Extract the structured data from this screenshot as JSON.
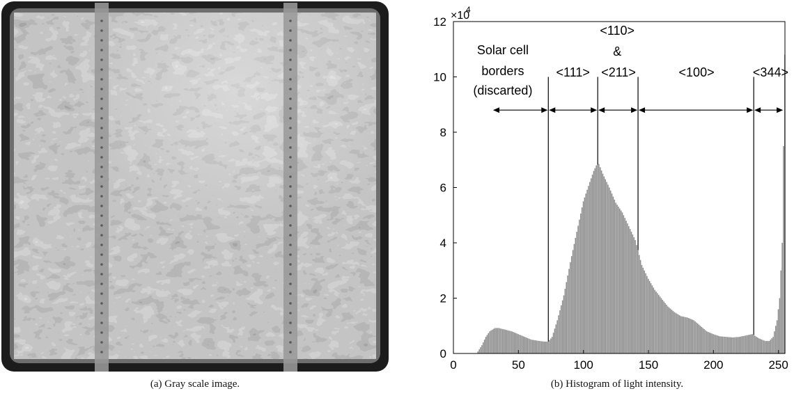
{
  "captions": {
    "a": "(a) Gray scale image.",
    "b": "(b) Histogram of light intensity."
  },
  "chart_data": {
    "type": "bar",
    "xlim": [
      0,
      255
    ],
    "ylim": [
      0,
      120000
    ],
    "xticks": [
      0,
      50,
      100,
      150,
      200,
      250
    ],
    "yticks": [
      0,
      2,
      4,
      6,
      8,
      10,
      12
    ],
    "y_exponent_label": "×10",
    "y_exponent_power": "4",
    "grid": false,
    "envelope_x": [
      0,
      18,
      20,
      22,
      25,
      28,
      32,
      35,
      40,
      45,
      50,
      55,
      60,
      65,
      70,
      73,
      76,
      80,
      85,
      90,
      95,
      100,
      105,
      108,
      110,
      112,
      115,
      120,
      125,
      130,
      135,
      140,
      145,
      150,
      155,
      160,
      165,
      170,
      175,
      180,
      185,
      190,
      195,
      200,
      205,
      210,
      215,
      220,
      225,
      230,
      235,
      240,
      243,
      246,
      249,
      251,
      253,
      254,
      255
    ],
    "envelope_y": [
      0,
      0,
      1500,
      3000,
      6000,
      8000,
      9200,
      9200,
      8600,
      8000,
      7000,
      6000,
      5000,
      4600,
      4300,
      4300,
      6000,
      12000,
      21000,
      33000,
      44000,
      55000,
      62000,
      66000,
      68000,
      68500,
      65000,
      60000,
      54500,
      51000,
      46000,
      41000,
      32000,
      27000,
      23000,
      20000,
      17000,
      15000,
      13500,
      13000,
      12000,
      10000,
      8000,
      7000,
      6200,
      6000,
      5800,
      6000,
      6500,
      7000,
      5500,
      4500,
      4500,
      6000,
      12000,
      20000,
      40000,
      75000,
      108000
    ],
    "region_labels": [
      {
        "text": "<111>",
        "x": 92
      },
      {
        "text": "<211>",
        "x": 127
      },
      {
        "text": "<100>",
        "x": 187
      },
      {
        "text": "<344>",
        "x": 244
      }
    ],
    "stacked_label": {
      "line1": "<110>",
      "line2": "&",
      "x": 126
    },
    "border_label": {
      "line1": "Solar cell",
      "line2": "borders",
      "line3": "(discarted)",
      "x": 38
    },
    "vertical_lines": [
      {
        "x": 73,
        "y_top": 100000
      },
      {
        "x": 111,
        "y_top": 100000
      },
      {
        "x": 142,
        "y_top": 100000
      },
      {
        "x": 231,
        "y_top": 100000
      }
    ],
    "arrows": [
      {
        "from": 30,
        "to": 73
      },
      {
        "from": 73,
        "to": 111
      },
      {
        "from": 111,
        "to": 142
      },
      {
        "from": 142,
        "to": 231
      },
      {
        "from": 231,
        "to": 254
      }
    ],
    "arrow_y": 88000
  }
}
